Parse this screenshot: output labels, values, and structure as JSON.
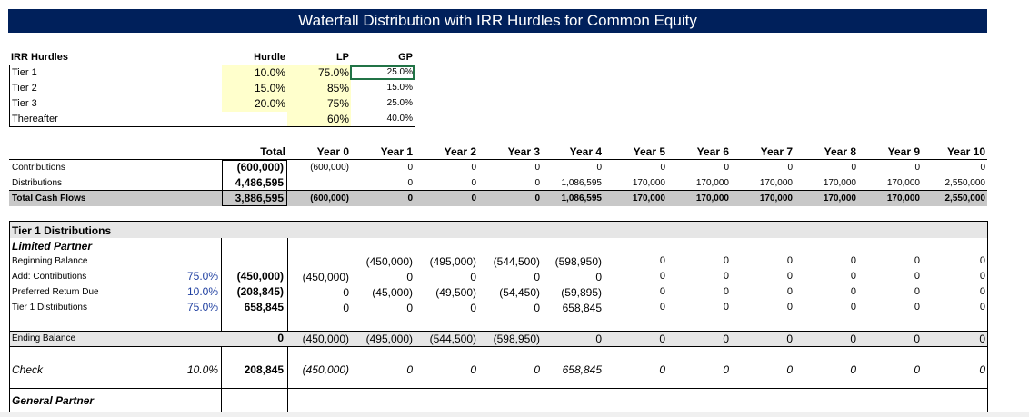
{
  "title": "Waterfall Distribution with IRR Hurdles for Common Equity",
  "hurdles": {
    "header": "IRR Hurdles",
    "col_hurdle": "Hurdle",
    "col_lp": "LP",
    "col_gp": "GP",
    "rows": [
      {
        "label": "Tier 1",
        "hurdle": "10.0%",
        "lp": "75.0%",
        "gp": "25.0%"
      },
      {
        "label": "Tier 2",
        "hurdle": "15.0%",
        "lp": "85%",
        "gp": "15.0%"
      },
      {
        "label": "Tier 3",
        "hurdle": "20.0%",
        "lp": "75%",
        "gp": "25.0%"
      },
      {
        "label": "Thereafter",
        "hurdle": "",
        "lp": "60%",
        "gp": "40.0%"
      }
    ]
  },
  "cashflow": {
    "total_header": "Total",
    "years": [
      "Year 0",
      "Year 1",
      "Year 2",
      "Year 3",
      "Year 4",
      "Year 5",
      "Year 6",
      "Year 7",
      "Year 8",
      "Year 9",
      "Year 10"
    ],
    "rows": [
      {
        "label": "Contributions",
        "total": "(600,000)",
        "values": [
          "(600,000)",
          "0",
          "0",
          "0",
          "0",
          "0",
          "0",
          "0",
          "0",
          "0",
          "0"
        ]
      },
      {
        "label": "Distributions",
        "total": "4,486,595",
        "values": [
          "",
          "0",
          "0",
          "0",
          "1,086,595",
          "170,000",
          "170,000",
          "170,000",
          "170,000",
          "170,000",
          "2,550,000"
        ]
      },
      {
        "label": "Total Cash Flows",
        "total": "3,886,595",
        "values": [
          "(600,000)",
          "0",
          "0",
          "0",
          "1,086,595",
          "170,000",
          "170,000",
          "170,000",
          "170,000",
          "170,000",
          "2,550,000"
        ]
      }
    ]
  },
  "tier1": {
    "header": "Tier 1 Distributions",
    "lp_header": "Limited Partner",
    "rows": [
      {
        "label": "Beginning Balance",
        "pct": "",
        "total": "",
        "values": [
          "",
          "(450,000)",
          "(495,000)",
          "(544,500)",
          "(598,950)",
          "0",
          "0",
          "0",
          "0",
          "0",
          "0"
        ]
      },
      {
        "label": "Add: Contributions",
        "pct": "75.0%",
        "total": "(450,000)",
        "values": [
          "(450,000)",
          "0",
          "0",
          "0",
          "0",
          "0",
          "0",
          "0",
          "0",
          "0",
          "0"
        ]
      },
      {
        "label": "Preferred Return Due",
        "pct": "10.0%",
        "total": "(208,845)",
        "values": [
          "0",
          "(45,000)",
          "(49,500)",
          "(54,450)",
          "(59,895)",
          "0",
          "0",
          "0",
          "0",
          "0",
          "0"
        ]
      },
      {
        "label": "Tier 1 Distributions",
        "pct": "75.0%",
        "total": "658,845",
        "values": [
          "0",
          "0",
          "0",
          "0",
          "658,845",
          "0",
          "0",
          "0",
          "0",
          "0",
          "0"
        ]
      }
    ],
    "ending": {
      "label": "Ending Balance",
      "total": "0",
      "values": [
        "(450,000)",
        "(495,000)",
        "(544,500)",
        "(598,950)",
        "0",
        "0",
        "0",
        "0",
        "0",
        "0",
        "0"
      ]
    },
    "check": {
      "label": "Check",
      "pct": "10.0%",
      "total": "208,845",
      "values": [
        "(450,000)",
        "0",
        "0",
        "0",
        "658,845",
        "0",
        "0",
        "0",
        "0",
        "0",
        "0"
      ]
    },
    "gp_header": "General Partner"
  }
}
